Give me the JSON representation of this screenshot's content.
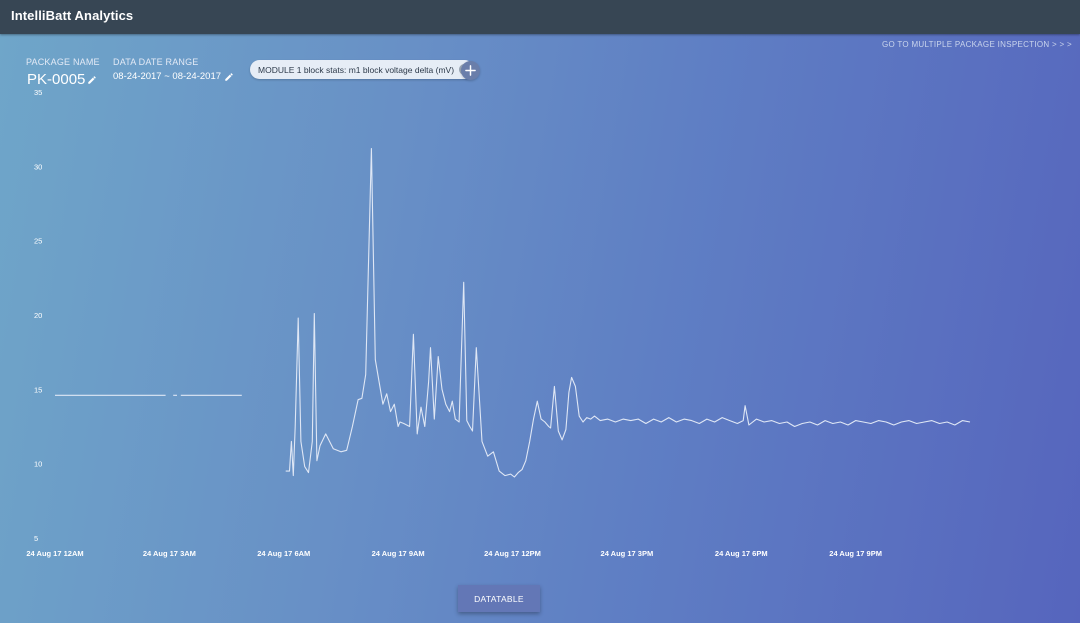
{
  "app": {
    "title": "IntelliBatt Analytics"
  },
  "links": {
    "multi_package": "GO TO MULTIPLE PACKAGE INSPECTION > > >"
  },
  "package": {
    "label": "PACKAGE NAME",
    "value": "PK-0005"
  },
  "date_range": {
    "label": "DATA DATE RANGE",
    "value": "08-24-2017 ~ 08-24-2017"
  },
  "filter_chip": {
    "label": "MODULE 1 block stats: m1 block voltage delta (mV)"
  },
  "buttons": {
    "datatable": "DATATABLE"
  },
  "icons": {
    "edit": "pencil-icon",
    "chip_close": "close-circle-icon",
    "add": "plus-icon"
  },
  "colors": {
    "topbar": "#374654",
    "line": "#dfe7f5",
    "chip": "#e6edf6"
  },
  "chart_data": {
    "type": "line",
    "ylim": [
      5,
      35
    ],
    "xlim": [
      0,
      24
    ],
    "y_ticks": [
      "35",
      "30",
      "25",
      "20",
      "15",
      "10",
      "5"
    ],
    "x_ticks": [
      {
        "label": "24 Aug 17 12AM",
        "hour": 0
      },
      {
        "label": "24 Aug 17 3AM",
        "hour": 3
      },
      {
        "label": "24 Aug 17 6AM",
        "hour": 6
      },
      {
        "label": "24 Aug 17 9AM",
        "hour": 9
      },
      {
        "label": "24 Aug 17 12PM",
        "hour": 12
      },
      {
        "label": "24 Aug 17 3PM",
        "hour": 15
      },
      {
        "label": "24 Aug 17 6PM",
        "hour": 18
      },
      {
        "label": "24 Aug 17 9PM",
        "hour": 21
      }
    ],
    "grid": false,
    "segments": [
      {
        "x": [
          0,
          2.9
        ],
        "y": [
          14.6,
          14.6
        ]
      },
      {
        "x": [
          3.1,
          3.2
        ],
        "y": [
          14.6,
          14.6
        ]
      },
      {
        "x": [
          3.3,
          4.9
        ],
        "y": [
          14.6,
          14.6
        ]
      },
      {
        "x": [
          6.05,
          6.15,
          6.2,
          6.25,
          6.3,
          6.38,
          6.45,
          6.55,
          6.65,
          6.75,
          6.8,
          6.87,
          6.95,
          7.1,
          7.3,
          7.5,
          7.65,
          7.8,
          7.95,
          8.05,
          8.15,
          8.3,
          8.4,
          8.5,
          8.6,
          8.7,
          8.8,
          8.9,
          9.0,
          9.05,
          9.15,
          9.3,
          9.4,
          9.5,
          9.6,
          9.7,
          9.8,
          9.85,
          9.95,
          10.05,
          10.15,
          10.25,
          10.35,
          10.42,
          10.5,
          10.6,
          10.72,
          10.8,
          10.88,
          10.95,
          11.05,
          11.2,
          11.35,
          11.5,
          11.65,
          11.8,
          11.95,
          12.05,
          12.15,
          12.25,
          12.35,
          12.45,
          12.55,
          12.65,
          12.75,
          12.85,
          12.95,
          13.0,
          13.1,
          13.2,
          13.3,
          13.4,
          13.48,
          13.55,
          13.65,
          13.75,
          13.85,
          13.95,
          14.05,
          14.15,
          14.3,
          14.5,
          14.7,
          14.9,
          15.1,
          15.3,
          15.5,
          15.7,
          15.9,
          16.1,
          16.3,
          16.5,
          16.7,
          16.9,
          17.1,
          17.3,
          17.5,
          17.7,
          17.9,
          18.05,
          18.1,
          18.2,
          18.4,
          18.6,
          18.8,
          19.0,
          19.2,
          19.4,
          19.6,
          19.8,
          20.0,
          20.2,
          20.4,
          20.6,
          20.8,
          21.0,
          21.2,
          21.4,
          21.6,
          21.8,
          22.0,
          22.2,
          22.4,
          22.6,
          22.8,
          23.0,
          23.2,
          23.4,
          23.6,
          23.8,
          24.0
        ],
        "y": [
          9.5,
          9.5,
          11.5,
          9.2,
          12.5,
          19.8,
          11.5,
          9.8,
          9.4,
          11.5,
          20.1,
          10.2,
          11.2,
          12.0,
          11.0,
          10.8,
          10.9,
          12.5,
          14.3,
          14.4,
          16.0,
          31.2,
          17.0,
          15.5,
          14.0,
          14.7,
          13.5,
          14.0,
          12.5,
          12.8,
          12.7,
          12.5,
          18.7,
          12.0,
          13.8,
          12.5,
          15.5,
          17.8,
          13.0,
          17.2,
          15.0,
          14.0,
          13.5,
          14.2,
          13.0,
          12.8,
          22.2,
          12.9,
          12.5,
          12.2,
          17.8,
          11.5,
          10.5,
          10.8,
          9.5,
          9.2,
          9.3,
          9.1,
          9.4,
          9.6,
          10.2,
          11.5,
          13.0,
          14.2,
          13.0,
          12.8,
          12.5,
          12.4,
          15.2,
          12.2,
          11.6,
          12.3,
          14.8,
          15.8,
          15.2,
          13.2,
          12.8,
          13.1,
          13.0,
          13.2,
          12.9,
          13.0,
          12.8,
          13.0,
          12.9,
          13.0,
          12.7,
          13.0,
          12.8,
          13.1,
          12.8,
          13.0,
          12.9,
          12.7,
          13.0,
          12.8,
          13.1,
          12.9,
          12.7,
          12.9,
          13.9,
          12.6,
          13.0,
          12.8,
          12.9,
          12.7,
          12.8,
          12.5,
          12.7,
          12.8,
          12.6,
          12.9,
          12.7,
          12.8,
          12.6,
          12.9,
          12.8,
          12.7,
          12.9,
          12.8,
          12.6,
          12.8,
          12.9,
          12.7,
          12.8,
          12.9,
          12.7,
          12.8,
          12.6,
          12.9,
          12.8
        ]
      }
    ]
  }
}
